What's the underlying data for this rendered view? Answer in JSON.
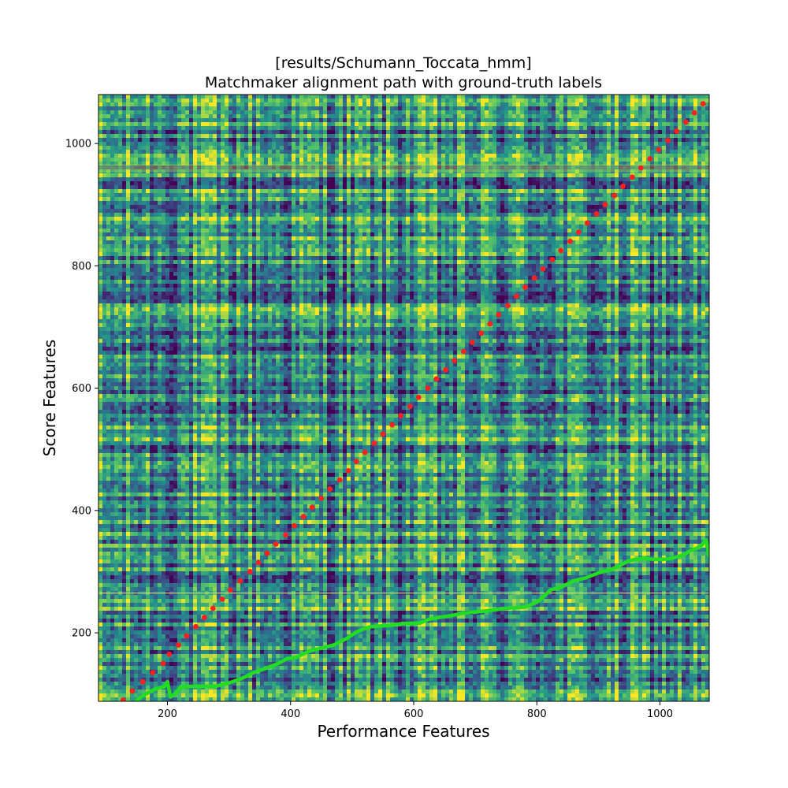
{
  "chart_data": {
    "type": "scatter",
    "title_line1": "[results/Schumann_Toccata_hmm]",
    "title_line2": "Matchmaker alignment path with ground-truth labels",
    "xlabel": "Performance Features",
    "ylabel": "Score Features",
    "xlim": [
      88,
      1080
    ],
    "ylim": [
      88,
      1080
    ],
    "x_ticks": [
      200,
      400,
      600,
      800,
      1000
    ],
    "y_ticks": [
      200,
      400,
      600,
      800,
      1000
    ],
    "background": "cost-matrix heatmap (viridis)",
    "grid": false,
    "series": [
      {
        "role": "ground-truth labels",
        "marker": "circle",
        "color": "#ff2020",
        "points": [
          [
            128,
            90
          ],
          [
            143,
            105
          ],
          [
            160,
            120
          ],
          [
            176,
            135
          ],
          [
            193,
            150
          ],
          [
            203,
            165
          ],
          [
            218,
            180
          ],
          [
            231,
            195
          ],
          [
            246,
            210
          ],
          [
            260,
            225
          ],
          [
            274,
            240
          ],
          [
            289,
            255
          ],
          [
            302,
            270
          ],
          [
            318,
            285
          ],
          [
            334,
            300
          ],
          [
            348,
            315
          ],
          [
            362,
            330
          ],
          [
            376,
            345
          ],
          [
            392,
            360
          ],
          [
            406,
            375
          ],
          [
            421,
            390
          ],
          [
            435,
            405
          ],
          [
            450,
            420
          ],
          [
            464,
            435
          ],
          [
            480,
            450
          ],
          [
            494,
            465
          ],
          [
            507,
            480
          ],
          [
            521,
            495
          ],
          [
            536,
            510
          ],
          [
            550,
            525
          ],
          [
            565,
            540
          ],
          [
            579,
            555
          ],
          [
            594,
            570
          ],
          [
            608,
            585
          ],
          [
            623,
            600
          ],
          [
            637,
            615
          ],
          [
            652,
            630
          ],
          [
            666,
            645
          ],
          [
            681,
            660
          ],
          [
            695,
            675
          ],
          [
            710,
            690
          ],
          [
            724,
            705
          ],
          [
            738,
            720
          ],
          [
            753,
            735
          ],
          [
            767,
            750
          ],
          [
            781,
            765
          ],
          [
            796,
            780
          ],
          [
            810,
            795
          ],
          [
            825,
            810
          ],
          [
            839,
            825
          ],
          [
            854,
            840
          ],
          [
            868,
            855
          ],
          [
            882,
            870
          ],
          [
            897,
            885
          ],
          [
            911,
            900
          ],
          [
            926,
            915
          ],
          [
            940,
            930
          ],
          [
            955,
            945
          ],
          [
            969,
            960
          ],
          [
            984,
            975
          ],
          [
            998,
            990
          ],
          [
            1013,
            1005
          ],
          [
            1027,
            1020
          ],
          [
            1042,
            1035
          ],
          [
            1056,
            1050
          ],
          [
            1070,
            1065
          ]
        ]
      },
      {
        "role": "alignment path",
        "marker": "line",
        "color": "#22dd22",
        "points": [
          [
            150,
            90
          ],
          [
            165,
            100
          ],
          [
            180,
            108
          ],
          [
            195,
            112
          ],
          [
            200,
            120
          ],
          [
            205,
            95
          ],
          [
            212,
            100
          ],
          [
            222,
            112
          ],
          [
            280,
            113
          ],
          [
            300,
            118
          ],
          [
            320,
            125
          ],
          [
            340,
            135
          ],
          [
            360,
            142
          ],
          [
            380,
            150
          ],
          [
            395,
            158
          ],
          [
            410,
            160
          ],
          [
            430,
            170
          ],
          [
            450,
            175
          ],
          [
            470,
            180
          ],
          [
            490,
            190
          ],
          [
            505,
            200
          ],
          [
            515,
            205
          ],
          [
            530,
            210
          ],
          [
            560,
            212
          ],
          [
            580,
            215
          ],
          [
            610,
            216
          ],
          [
            625,
            222
          ],
          [
            640,
            225
          ],
          [
            660,
            228
          ],
          [
            680,
            232
          ],
          [
            700,
            234
          ],
          [
            720,
            236
          ],
          [
            735,
            238
          ],
          [
            750,
            240
          ],
          [
            780,
            242
          ],
          [
            800,
            250
          ],
          [
            812,
            260
          ],
          [
            822,
            270
          ],
          [
            840,
            275
          ],
          [
            860,
            285
          ],
          [
            880,
            290
          ],
          [
            900,
            298
          ],
          [
            920,
            303
          ],
          [
            935,
            310
          ],
          [
            950,
            318
          ],
          [
            960,
            320
          ],
          [
            975,
            322
          ],
          [
            990,
            320
          ],
          [
            1005,
            320
          ],
          [
            1020,
            322
          ],
          [
            1040,
            328
          ],
          [
            1050,
            335
          ],
          [
            1065,
            340
          ],
          [
            1075,
            352
          ],
          [
            1080,
            325
          ]
        ]
      }
    ]
  }
}
